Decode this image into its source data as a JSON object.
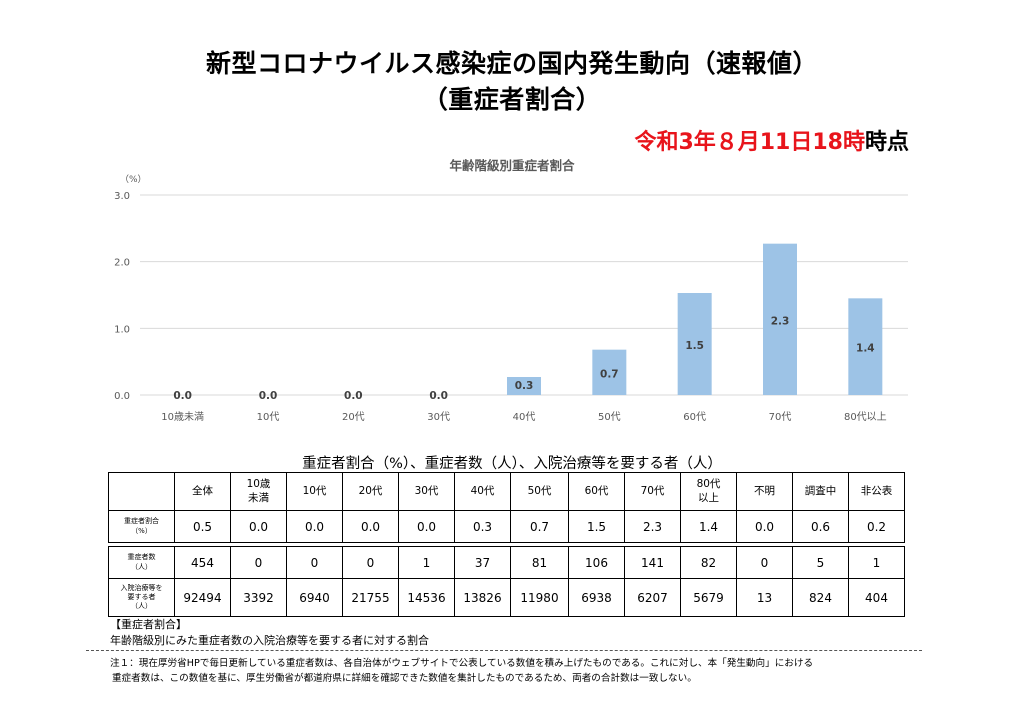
{
  "header": {
    "title_line1": "新型コロナウイルス感染症の国内発生動向（速報値）",
    "title_line2": "（重症者割合）",
    "timestamp_red": "令和3年８月11日18時",
    "timestamp_black": "時点"
  },
  "chart_data": {
    "type": "bar",
    "title": "年齢階級別重症者割合",
    "ylabel": "（%）",
    "categories": [
      "10歳未満",
      "10代",
      "20代",
      "30代",
      "40代",
      "50代",
      "60代",
      "70代",
      "80代以上"
    ],
    "values": [
      0.0,
      0.0,
      0.0,
      0.0,
      0.3,
      0.7,
      1.5,
      2.3,
      1.4
    ],
    "bar_heights": [
      0.0,
      0.0,
      0.0,
      0.0,
      0.27,
      0.68,
      1.53,
      2.27,
      1.45
    ],
    "ylim": [
      0,
      3.0
    ],
    "yticks": [
      "0.0",
      "1.0",
      "2.0",
      "3.0"
    ],
    "grid": true,
    "bar_color": "#9dc3e6"
  },
  "table": {
    "title": "重症者割合（%）、重症者数（人）、入院治療等を要する者（人）",
    "headers": [
      "全体",
      "10歳\n未満",
      "10代",
      "20代",
      "30代",
      "40代",
      "50代",
      "60代",
      "70代",
      "80代\n以上",
      "不明",
      "調査中",
      "非公表"
    ],
    "rows": [
      {
        "label": "重症者割合\n（%）",
        "values": [
          "0.5",
          "0.0",
          "0.0",
          "0.0",
          "0.0",
          "0.3",
          "0.7",
          "1.5",
          "2.3",
          "1.4",
          "0.0",
          "0.6",
          "0.2"
        ]
      },
      {
        "label": "重症者数\n（人）",
        "values": [
          "454",
          "0",
          "0",
          "0",
          "1",
          "37",
          "81",
          "106",
          "141",
          "82",
          "0",
          "5",
          "1"
        ]
      },
      {
        "label": "入院治療等を\n要する者\n（人）",
        "values": [
          "92494",
          "3392",
          "6940",
          "21755",
          "14536",
          "13826",
          "11980",
          "6938",
          "6207",
          "5679",
          "13",
          "824",
          "404"
        ]
      }
    ]
  },
  "notes": {
    "heading": "【重症者割合】",
    "body": "年齢階級別にみた重症者数の入院治療等を要する者に対する割合",
    "footnote_line1": "注１：現在厚労省HPで毎日更新している重症者数は、各自治体がウェブサイトで公表している数値を積み上げたものである。これに対し、本「発生動向」における",
    "footnote_line2": "重症者数は、この数値を基に、厚生労働省が都道府県に詳細を確認できた数値を集計したものであるため、両者の合計数は一致しない。"
  }
}
